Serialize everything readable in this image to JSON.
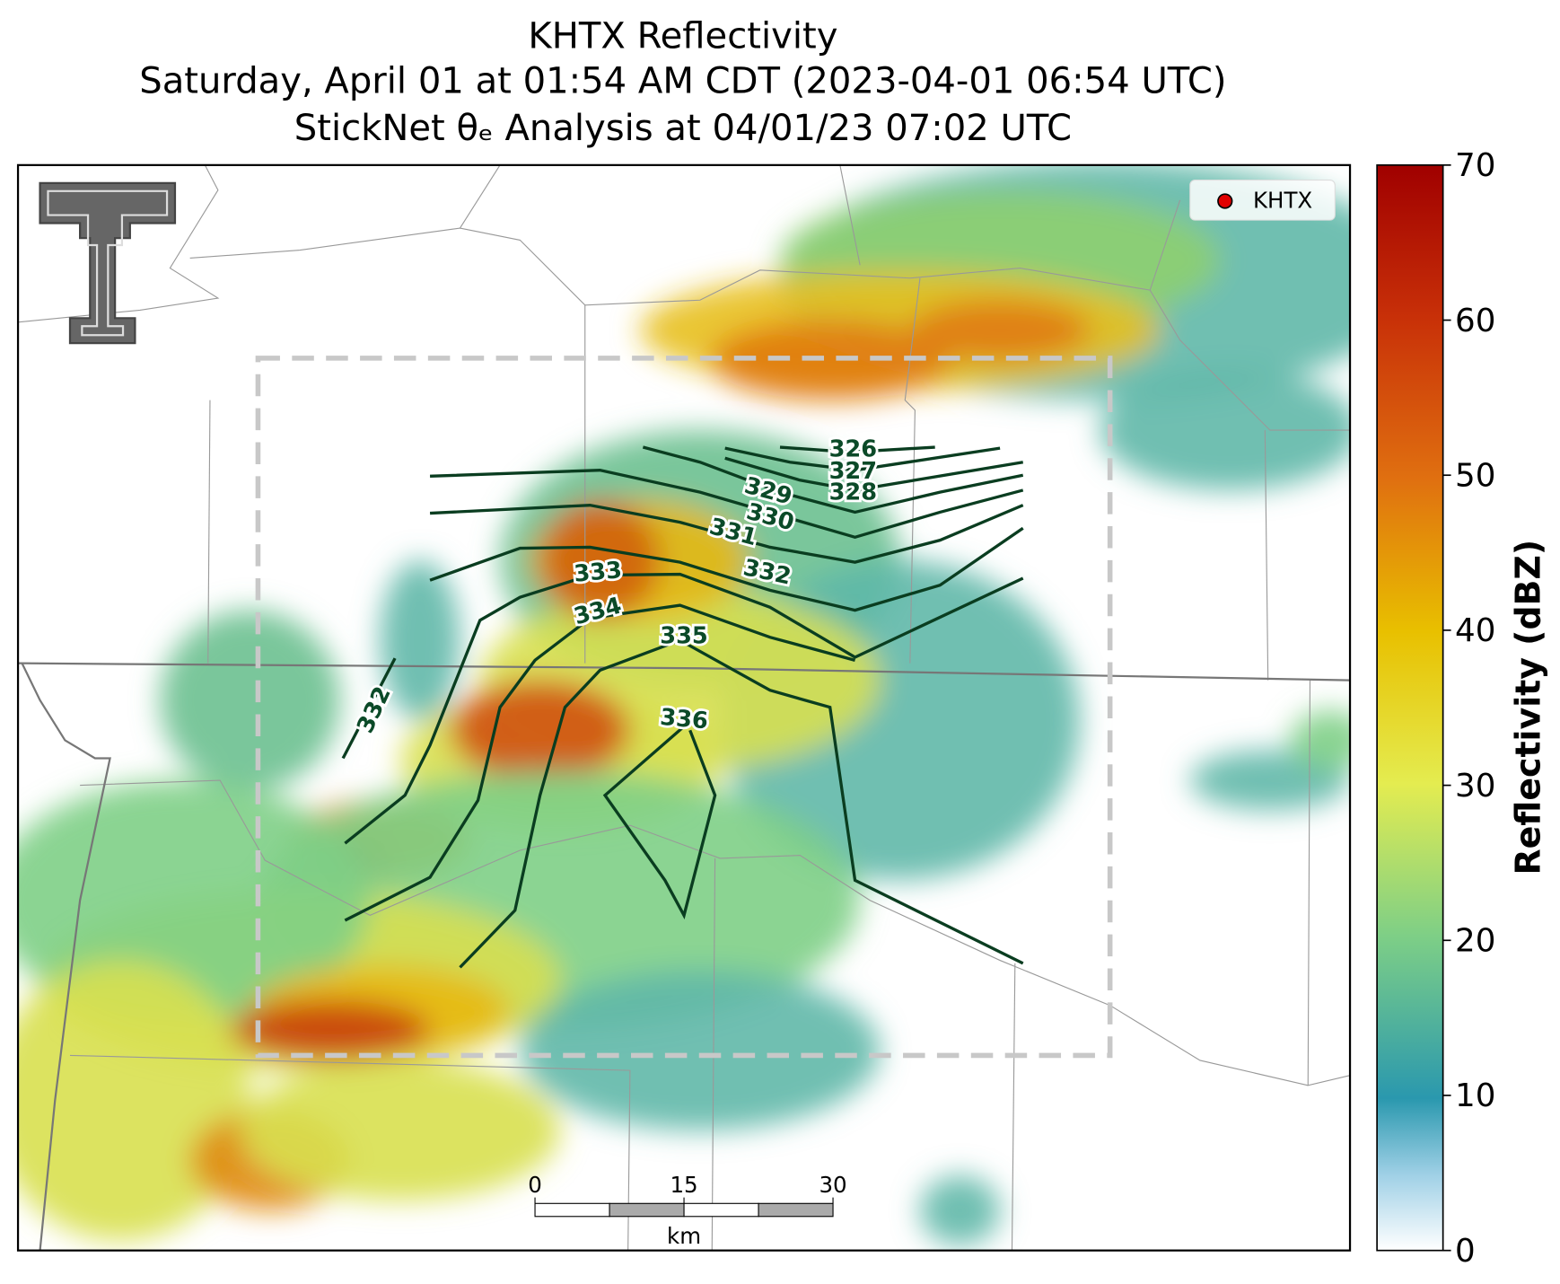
{
  "title": [
    "KHTX Reflectivity",
    "Saturday, April 01 at 01:54 AM CDT (2023-04-01 06:54 UTC)",
    "StickNet θₑ Analysis at 04/01/23 07:02 UTC"
  ],
  "legend": {
    "label": "KHTX"
  },
  "colorbar": {
    "label": "Reflectivity (dBZ)",
    "lim": [
      0,
      70
    ],
    "ticks": [
      0,
      10,
      20,
      30,
      40,
      50,
      60,
      70
    ]
  },
  "contours": [
    326,
    327,
    328,
    329,
    330,
    331,
    332,
    333,
    334,
    335,
    336,
    332
  ],
  "scale_bar": {
    "ticks": [
      0,
      15,
      30
    ],
    "unit": "km"
  }
}
